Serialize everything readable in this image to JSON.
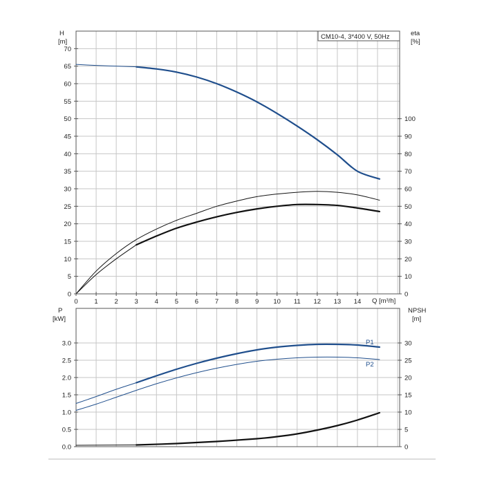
{
  "colors": {
    "grid": "#c6c6c6",
    "frame": "#555555",
    "blue": "#1f4e8c",
    "black": "#111111",
    "bottom_rule": "#bbbbbb"
  },
  "chart_data": [
    {
      "type": "line",
      "legend_box": "CM10-4, 3*400 V, 50Hz",
      "legend_placement": "top-right",
      "grid": true,
      "xlabel": "Q [m³/h]",
      "xlim": [
        0,
        16.1
      ],
      "xticks": [
        0,
        1,
        2,
        3,
        4,
        5,
        6,
        7,
        8,
        9,
        10,
        11,
        12,
        13,
        14
      ],
      "ylabel_left": "H",
      "ylabel_left_unit": "[m]",
      "ylim_left": [
        0,
        75
      ],
      "yticks_left": [
        0,
        5,
        10,
        15,
        20,
        25,
        30,
        35,
        40,
        45,
        50,
        55,
        60,
        65,
        70
      ],
      "ylabel_right": "eta",
      "ylabel_right_unit": "[%]",
      "ylim_right": [
        0,
        150
      ],
      "yticks_right": [
        0,
        10,
        20,
        30,
        40,
        50,
        60,
        70,
        80,
        90,
        100
      ],
      "series": [
        {
          "axis": "left",
          "style": "thin",
          "color": "blue",
          "x": [
            0,
            1,
            2,
            3
          ],
          "y": [
            65.5,
            65.2,
            65.0,
            64.8
          ]
        },
        {
          "axis": "left",
          "style": "thick",
          "color": "blue",
          "x": [
            3,
            4,
            5,
            6,
            7,
            8,
            9,
            10,
            11,
            12,
            13,
            14,
            15.1
          ],
          "y": [
            64.8,
            64.2,
            63.3,
            61.9,
            60.0,
            57.6,
            54.8,
            51.5,
            47.9,
            44.0,
            39.7,
            35.0,
            32.8
          ]
        },
        {
          "axis": "right",
          "style": "thin",
          "color": "black",
          "x": [
            0,
            1,
            2,
            3,
            4,
            5,
            6,
            7,
            8,
            9,
            10,
            11,
            12,
            13,
            14,
            15.1
          ],
          "y": [
            0,
            13,
            23,
            31,
            37,
            42,
            46,
            50,
            53,
            55.5,
            57,
            58,
            58.5,
            58,
            56.5,
            53.5
          ]
        },
        {
          "axis": "right",
          "style": "thin",
          "color": "black",
          "x": [
            0,
            1,
            2,
            3
          ],
          "y": [
            0,
            11,
            20,
            28
          ]
        },
        {
          "axis": "right",
          "style": "thick",
          "color": "black",
          "x": [
            3,
            4,
            5,
            6,
            7,
            8,
            9,
            10,
            11,
            12,
            13,
            14,
            15.1
          ],
          "y": [
            28,
            33,
            37.5,
            41,
            44,
            46.5,
            48.5,
            50,
            51,
            51,
            50.5,
            49,
            47
          ]
        }
      ]
    },
    {
      "type": "line",
      "grid": true,
      "xlim": [
        0,
        16.1
      ],
      "ylabel_left": "P",
      "ylabel_left_unit": "[kW]",
      "ylim_left": [
        0,
        4.0
      ],
      "yticks_left": [
        "0.0",
        "0.5",
        "1.0",
        "1.5",
        "2.0",
        "2.5",
        "3.0"
      ],
      "ylabel_right": "NPSH",
      "ylabel_right_unit": "[m]",
      "ylim_right": [
        0,
        40
      ],
      "yticks_right": [
        0,
        5,
        10,
        15,
        20,
        25,
        30
      ],
      "series": [
        {
          "name": "P1",
          "axis": "left",
          "style": "thin",
          "color": "blue",
          "x": [
            0,
            1,
            2,
            3
          ],
          "y": [
            1.25,
            1.45,
            1.66,
            1.85
          ]
        },
        {
          "name": "P1",
          "axis": "left",
          "style": "thick",
          "color": "blue",
          "x": [
            3,
            4,
            5,
            6,
            7,
            8,
            9,
            10,
            11,
            12,
            13,
            14,
            15.1
          ],
          "y": [
            1.85,
            2.05,
            2.24,
            2.41,
            2.56,
            2.69,
            2.8,
            2.88,
            2.93,
            2.96,
            2.96,
            2.94,
            2.88
          ]
        },
        {
          "name": "P2",
          "axis": "left",
          "style": "thin",
          "color": "blue",
          "x": [
            0,
            1,
            2,
            3,
            4,
            5,
            6,
            7,
            8,
            9,
            10,
            11,
            12,
            13,
            14,
            15.1
          ],
          "y": [
            1.05,
            1.23,
            1.43,
            1.63,
            1.82,
            1.99,
            2.14,
            2.27,
            2.38,
            2.47,
            2.53,
            2.57,
            2.59,
            2.59,
            2.57,
            2.52
          ]
        },
        {
          "axis": "right",
          "style": "thin",
          "color": "black",
          "x": [
            0,
            3
          ],
          "y": [
            0.4,
            0.5
          ]
        },
        {
          "axis": "right",
          "style": "thick",
          "color": "black",
          "x": [
            3,
            5,
            7,
            9,
            10,
            11,
            12,
            13,
            14,
            15.1
          ],
          "y": [
            0.5,
            0.9,
            1.5,
            2.3,
            2.9,
            3.7,
            4.8,
            6.1,
            7.7,
            9.8
          ]
        }
      ]
    }
  ]
}
